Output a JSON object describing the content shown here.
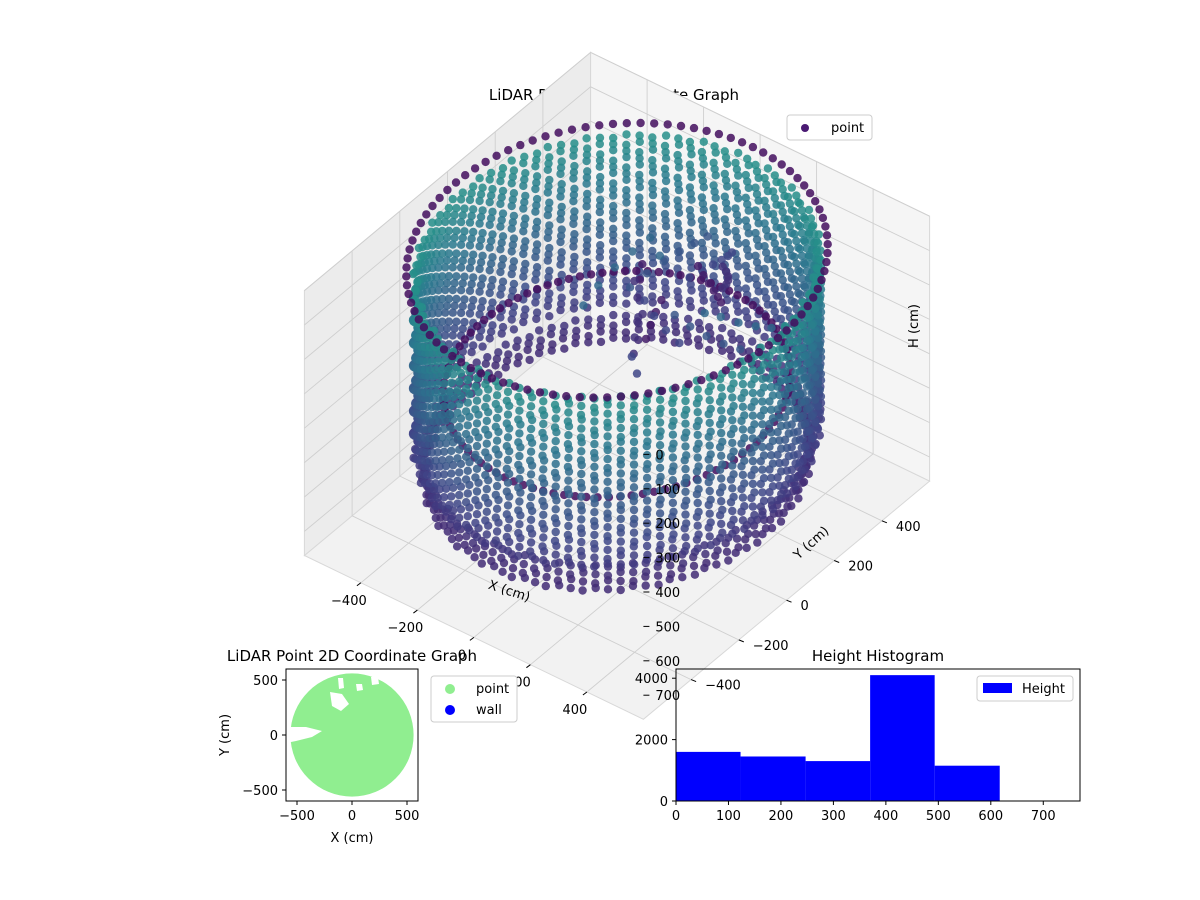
{
  "chart_data": [
    {
      "type": "scatter",
      "projection": "3d",
      "title": "LiDAR Point 3D Coordinate Graph",
      "xlabel": "X (cm)",
      "ylabel": "Y (cm)",
      "zlabel": "H (cm)",
      "xticks": [
        -400,
        -200,
        0,
        200,
        400
      ],
      "yticks": [
        -400,
        -200,
        0,
        200,
        400
      ],
      "zticks": [
        0,
        100,
        200,
        300,
        400,
        500,
        600,
        700
      ],
      "xtick_labels": [
        "−400",
        "−200",
        "0",
        "200",
        "400"
      ],
      "ytick_labels": [
        "−400",
        "−200",
        "0",
        "200",
        "400"
      ],
      "ztick_labels": [
        "0",
        "100",
        "200",
        "300",
        "400",
        "500",
        "600",
        "700"
      ],
      "xlim": [
        -600,
        600
      ],
      "ylim": [
        -600,
        600
      ],
      "zlim": [
        770,
        0
      ],
      "zaxis_inverted": true,
      "grid": true,
      "legend": {
        "location": "upper-right",
        "entries": [
          {
            "label": "point",
            "color": "#4a1a73"
          }
        ]
      },
      "series": [
        {
          "name": "point",
          "color_map": "viridis",
          "description_values": {
            "shape": "cylindrical-wall",
            "radius_range_cm": [
              480,
              560
            ],
            "height_range_cm": [
              0,
              620
            ]
          }
        }
      ]
    },
    {
      "type": "scatter",
      "title": "LiDAR Point 2D Coordinate Graph",
      "xlabel": "X (cm)",
      "ylabel": "Y (cm)",
      "xlim": [
        -600,
        600
      ],
      "ylim": [
        -600,
        600
      ],
      "xticks": [
        -500,
        0,
        500
      ],
      "yticks": [
        -500,
        0,
        500
      ],
      "xtick_labels": [
        "−500",
        "0",
        "500"
      ],
      "ytick_labels": [
        "−500",
        "0",
        "500"
      ],
      "legend": {
        "location": "outside-right",
        "entries": [
          {
            "label": "point",
            "color": "#90ee90"
          },
          {
            "label": "wall",
            "color": "#0000ff"
          }
        ]
      },
      "series": [
        {
          "name": "point",
          "color": "#90ee90",
          "shape": "filled-disk",
          "radius_cm": 560
        },
        {
          "name": "wall",
          "color": "#0000ff",
          "values": []
        }
      ]
    },
    {
      "type": "bar",
      "subtype": "histogram",
      "title": "Height Histogram",
      "xlim": [
        0,
        770
      ],
      "ylim": [
        0,
        4300
      ],
      "xticks": [
        0,
        100,
        200,
        300,
        400,
        500,
        600,
        700
      ],
      "yticks": [
        0,
        2000,
        4000
      ],
      "legend": {
        "location": "upper-right",
        "entries": [
          {
            "label": "Height",
            "color": "#0000ff"
          }
        ]
      },
      "bin_edges": [
        0,
        123,
        247,
        370,
        493,
        617
      ],
      "values": [
        1600,
        1450,
        1300,
        4100,
        1150
      ],
      "color": "#0000ff"
    }
  ]
}
